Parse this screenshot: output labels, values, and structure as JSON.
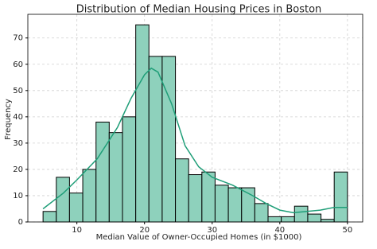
{
  "chart_data": {
    "type": "histogram",
    "title": "Distribution of Median Housing Prices in Boston",
    "x_label": "Median Value of Owner-Occupied Homes (in $1000)",
    "y_label": "Frequency",
    "bins": [
      5,
      6.96,
      8.91,
      10.87,
      12.83,
      14.78,
      16.74,
      18.7,
      20.65,
      22.61,
      24.57,
      26.52,
      28.48,
      30.43,
      32.39,
      34.35,
      36.3,
      38.26,
      40.22,
      42.17,
      44.13,
      46.09,
      48.04,
      50
    ],
    "counts": [
      4,
      17,
      11,
      20,
      38,
      34,
      40,
      75,
      63,
      63,
      24,
      18,
      19,
      14,
      13,
      13,
      7,
      2,
      2,
      6,
      3,
      1,
      19
    ],
    "color": "#8ed1bc",
    "edgecolor": "#000000",
    "kde": {
      "color": "#1f9e78",
      "x": [
        5,
        8,
        10,
        13,
        16,
        18,
        20,
        21,
        22,
        24,
        26,
        28,
        30,
        33,
        36,
        38,
        40,
        42,
        44,
        46,
        48,
        50
      ],
      "y": [
        5,
        11,
        16,
        24,
        36,
        47,
        56,
        58.5,
        57,
        45,
        29,
        21,
        17,
        14,
        10,
        7,
        4.5,
        3.5,
        4,
        4.5,
        5.5,
        5.5
      ]
    },
    "xlim": [
      2.75,
      52.25
    ],
    "ylim": [
      0,
      79
    ],
    "xticks": [
      10,
      20,
      30,
      40,
      50
    ],
    "yticks": [
      0,
      10,
      20,
      30,
      40,
      50,
      60,
      70
    ],
    "grid": true
  }
}
